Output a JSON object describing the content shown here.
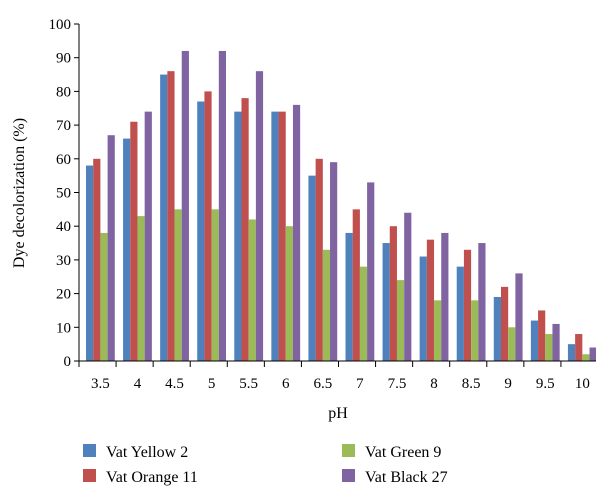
{
  "chart_data": {
    "type": "bar",
    "title": "",
    "xlabel": "pH",
    "ylabel": "Dye decolorization (%)",
    "ylim": [
      0,
      100
    ],
    "yticks": [
      0,
      10,
      20,
      30,
      40,
      50,
      60,
      70,
      80,
      90,
      100
    ],
    "grid": false,
    "legend_position": "bottom",
    "categories": [
      "3.5",
      "4",
      "4.5",
      "5",
      "5.5",
      "6",
      "6.5",
      "7",
      "7.5",
      "8",
      "8.5",
      "9",
      "9.5",
      "10"
    ],
    "series": [
      {
        "name": "Vat Yellow 2",
        "color": "#4F81BD",
        "values": [
          58,
          66,
          85,
          77,
          74,
          74,
          55,
          38,
          35,
          31,
          28,
          19,
          12,
          5
        ]
      },
      {
        "name": "Vat Orange 11",
        "color": "#C0504D",
        "values": [
          60,
          71,
          86,
          80,
          78,
          74,
          60,
          45,
          40,
          36,
          33,
          22,
          15,
          8
        ]
      },
      {
        "name": "Vat Green 9",
        "color": "#9BBB59",
        "values": [
          38,
          43,
          45,
          45,
          42,
          40,
          33,
          28,
          24,
          18,
          18,
          10,
          8,
          2
        ]
      },
      {
        "name": "Vat Black 27",
        "color": "#8064A2",
        "values": [
          67,
          74,
          92,
          92,
          86,
          76,
          59,
          53,
          44,
          38,
          35,
          26,
          11,
          4
        ]
      }
    ]
  }
}
